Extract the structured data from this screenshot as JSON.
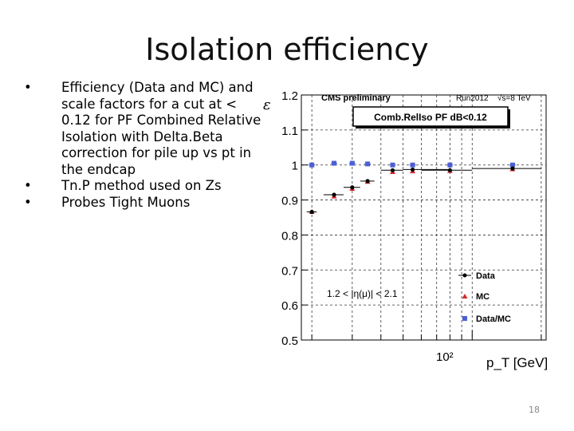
{
  "slide": {
    "title": "Isolation efficiency",
    "bullets": [
      "Efficiency (Data and MC) and scale factors for a cut at < 0.12 for PF Combined Relative Isolation with Delta.Beta correction for pile up vs pt in the endcap",
      "Tn.P method used on Zs",
      "Probes Tight Muons"
    ],
    "bullet_marker": "•",
    "page_number": "18"
  },
  "chart_data": {
    "type": "scatter",
    "title": "CMS preliminary",
    "run_label": "Run2012",
    "energy_label": "√s=8 TeV",
    "selection_label": "Comb.RelIso PF dB<0.12",
    "region_label": "1.2 < |η(μ)| < 2.1",
    "xlabel": "p_T [GeV]",
    "ylabel": "ε",
    "x_scale": "log",
    "xlim": [
      18,
      210
    ],
    "ylim": [
      0.5,
      1.2
    ],
    "x_tick_label": "10²",
    "y_ticks": [
      0.5,
      0.6,
      0.7,
      0.8,
      0.9,
      1,
      1.1,
      1.2
    ],
    "y_tick_labels": [
      "0.5",
      "0.6",
      "0.7",
      "0.8",
      "0.9",
      "1",
      "1.1",
      "1.2"
    ],
    "grid": true,
    "legend_position": "bottom-right",
    "series": [
      {
        "name": "Data",
        "marker": "circle",
        "color": "#000000",
        "x": [
          20,
          25,
          30,
          35,
          45,
          55,
          80,
          150
        ],
        "xerr": [
          [
            1,
            1
          ],
          [
            2.5,
            2.5
          ],
          [
            2.5,
            2.5
          ],
          [
            2.5,
            2.5
          ],
          [
            5,
            5
          ],
          [
            5,
            25
          ],
          [
            20,
            20
          ],
          [
            50,
            50
          ]
        ],
        "y": [
          0.866,
          0.915,
          0.936,
          0.954,
          0.985,
          0.987,
          0.985,
          0.99
        ]
      },
      {
        "name": "MC",
        "marker": "triangle",
        "color": "#d62728",
        "x": [
          20,
          25,
          30,
          35,
          45,
          55,
          80,
          150
        ],
        "y": [
          0.866,
          0.91,
          0.932,
          0.952,
          0.98,
          0.982,
          0.983,
          0.988
        ]
      },
      {
        "name": "Data/MC",
        "marker": "square",
        "color": "#4c5fd5",
        "x": [
          20,
          25,
          30,
          35,
          45,
          55,
          80,
          150
        ],
        "y": [
          1.0,
          1.005,
          1.005,
          1.003,
          1.0,
          1.0,
          1.0,
          1.0
        ]
      }
    ]
  }
}
